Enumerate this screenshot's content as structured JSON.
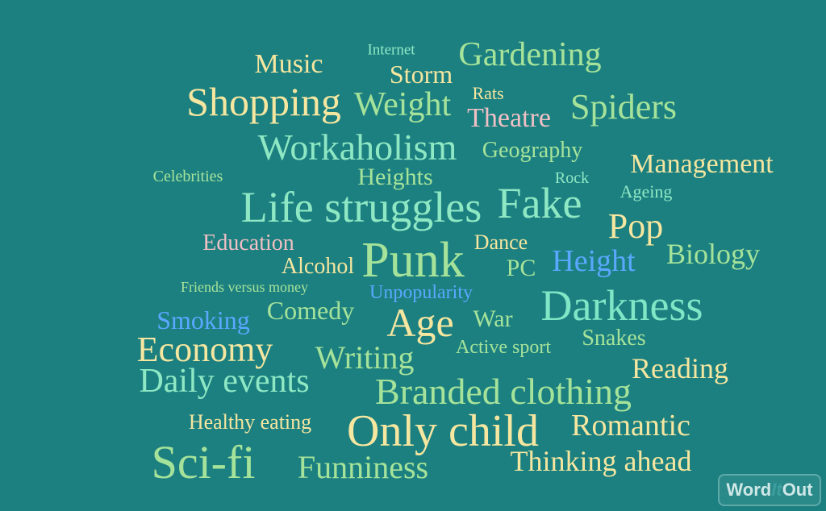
{
  "words": [
    {
      "key": "internet",
      "text": "Internet"
    },
    {
      "key": "music",
      "text": "Music"
    },
    {
      "key": "storm",
      "text": "Storm"
    },
    {
      "key": "gardening",
      "text": "Gardening"
    },
    {
      "key": "shopping",
      "text": "Shopping"
    },
    {
      "key": "weight",
      "text": "Weight"
    },
    {
      "key": "rats",
      "text": "Rats"
    },
    {
      "key": "theatre",
      "text": "Theatre"
    },
    {
      "key": "spiders",
      "text": "Spiders"
    },
    {
      "key": "workaholism",
      "text": "Workaholism"
    },
    {
      "key": "geography",
      "text": "Geography"
    },
    {
      "key": "management",
      "text": "Management"
    },
    {
      "key": "celebrities",
      "text": "Celebrities"
    },
    {
      "key": "heights",
      "text": "Heights"
    },
    {
      "key": "rock",
      "text": "Rock"
    },
    {
      "key": "ageing",
      "text": "Ageing"
    },
    {
      "key": "life_struggles",
      "text": "Life struggles"
    },
    {
      "key": "fake",
      "text": "Fake"
    },
    {
      "key": "pop",
      "text": "Pop"
    },
    {
      "key": "education",
      "text": "Education"
    },
    {
      "key": "dance",
      "text": "Dance"
    },
    {
      "key": "biology",
      "text": "Biology"
    },
    {
      "key": "alcohol",
      "text": "Alcohol"
    },
    {
      "key": "punk",
      "text": "Punk"
    },
    {
      "key": "pc",
      "text": "PC"
    },
    {
      "key": "height",
      "text": "Height"
    },
    {
      "key": "friends_versus_money",
      "text": "Friends versus money"
    },
    {
      "key": "unpopularity",
      "text": "Unpopularity"
    },
    {
      "key": "comedy",
      "text": "Comedy"
    },
    {
      "key": "smoking",
      "text": "Smoking"
    },
    {
      "key": "age",
      "text": "Age"
    },
    {
      "key": "war",
      "text": "War"
    },
    {
      "key": "darkness",
      "text": "Darkness"
    },
    {
      "key": "economy",
      "text": "Economy"
    },
    {
      "key": "writing",
      "text": "Writing"
    },
    {
      "key": "active_sport",
      "text": "Active sport"
    },
    {
      "key": "snakes",
      "text": "Snakes"
    },
    {
      "key": "reading",
      "text": "Reading"
    },
    {
      "key": "daily_events",
      "text": "Daily events"
    },
    {
      "key": "branded_clothing",
      "text": "Branded clothing"
    },
    {
      "key": "healthy_eating",
      "text": "Healthy eating"
    },
    {
      "key": "only_child",
      "text": "Only child"
    },
    {
      "key": "romantic",
      "text": "Romantic"
    },
    {
      "key": "sci_fi",
      "text": "Sci-fi"
    },
    {
      "key": "funniness",
      "text": "Funniness"
    },
    {
      "key": "thinking_ahead",
      "text": "Thinking ahead"
    }
  ],
  "logo": {
    "part1": "Word",
    "part2": "It",
    "part3": "Out"
  },
  "colors": {
    "background": "#1c8080",
    "yellow": "#f5e6a0",
    "green": "#a6e39a",
    "mint": "#8ee8c4",
    "pink": "#f0c0c4",
    "blue": "#5aa8ff"
  }
}
